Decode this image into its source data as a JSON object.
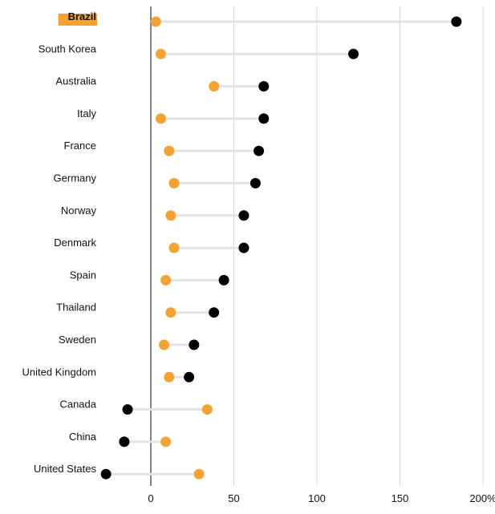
{
  "chart_data": {
    "type": "dumbbell",
    "x_ticks": [
      {
        "value": 0,
        "label": "0"
      },
      {
        "value": 50,
        "label": "50"
      },
      {
        "value": 100,
        "label": "100"
      },
      {
        "value": 150,
        "label": "150"
      },
      {
        "value": 200,
        "label": "200%"
      }
    ],
    "xlim": [
      -37,
      200
    ],
    "grid": "vertical",
    "highlighted_category": "Brazil",
    "colors": {
      "orange_point": "#F5A234",
      "black_point": "#000000",
      "connector": "#E3E3E6",
      "grid": "#DADADA",
      "zero_line": "#333333",
      "highlight": "#F5A234"
    },
    "rows": [
      {
        "label": "Brazil",
        "orange": 3,
        "black": 184
      },
      {
        "label": "South Korea",
        "orange": 6,
        "black": 122
      },
      {
        "label": "Australia",
        "orange": 38,
        "black": 68
      },
      {
        "label": "Italy",
        "orange": 6,
        "black": 68
      },
      {
        "label": "France",
        "orange": 11,
        "black": 65
      },
      {
        "label": "Germany",
        "orange": 14,
        "black": 63
      },
      {
        "label": "Norway",
        "orange": 12,
        "black": 56
      },
      {
        "label": "Denmark",
        "orange": 14,
        "black": 56
      },
      {
        "label": "Spain",
        "orange": 9,
        "black": 44
      },
      {
        "label": "Thailand",
        "orange": 12,
        "black": 38
      },
      {
        "label": "Sweden",
        "orange": 8,
        "black": 26
      },
      {
        "label": "United Kingdom",
        "orange": 11,
        "black": 23
      },
      {
        "label": "Canada",
        "orange": 34,
        "black": -14
      },
      {
        "label": "China",
        "orange": 9,
        "black": -16
      },
      {
        "label": "United States",
        "orange": 29,
        "black": -27
      }
    ]
  }
}
